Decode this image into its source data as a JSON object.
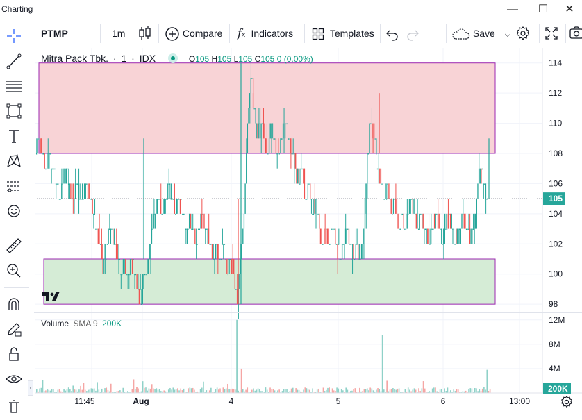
{
  "window": {
    "title": "Charting",
    "minimize": "—",
    "maximize": "☐",
    "close": "✕"
  },
  "toolbar": {
    "symbol": "PTMP",
    "interval": "1m",
    "compare": "Compare",
    "indicators": "Indicators",
    "templates": "Templates",
    "save": "Save"
  },
  "legend": {
    "name": "Mitra Pack Tbk.",
    "sep1": "·",
    "interval": "1",
    "sep2": "·",
    "exchange": "IDX",
    "open_label": "O",
    "open": "105",
    "high_label": "H",
    "high": "105",
    "low_label": "L",
    "low": "105",
    "close_label": "C",
    "close": "105",
    "change": "0 (0.00%)"
  },
  "volume_legend": {
    "label": "Volume",
    "ma": "SMA 9",
    "value": "200K"
  },
  "colors": {
    "up": "#26a69a",
    "down": "#ef5350",
    "accent": "#2962ff",
    "resistance_fill": "#f8d3d6",
    "support_fill": "#d5ecd6",
    "zone_border": "#9c27b0"
  },
  "chart_data": [
    {
      "type": "candlestick",
      "symbol": "PTMP",
      "ylim": [
        97.5,
        115
      ],
      "y_ticks": [
        "114",
        "112",
        "110",
        "108",
        "106",
        "104",
        "102",
        "100",
        "98"
      ],
      "x_ticks": [
        "11:45",
        "Aug",
        "4",
        "5",
        "6",
        "13:00"
      ],
      "last_price": "105",
      "zones": [
        {
          "name": "resistance",
          "from": 108,
          "to": 114
        },
        {
          "name": "support",
          "from": 98,
          "to": 101
        }
      ],
      "path": [
        108,
        109,
        108,
        107,
        108,
        107,
        106,
        105,
        106,
        107,
        106,
        105,
        106,
        105,
        105,
        106,
        105,
        104,
        103,
        102,
        101,
        102,
        103,
        102,
        101,
        100,
        101,
        100,
        101,
        100,
        99,
        98,
        100,
        101,
        103,
        104,
        105,
        104,
        105,
        106,
        105,
        104,
        105,
        104,
        103,
        104,
        103,
        102,
        103,
        104,
        103,
        102,
        101,
        102,
        101,
        102,
        100,
        101,
        100,
        98,
        101,
        104,
        110,
        113,
        111,
        109,
        110,
        109,
        108,
        110,
        109,
        108,
        109,
        110,
        109,
        108,
        107,
        106,
        107,
        105,
        106,
        104,
        105,
        103,
        102,
        103,
        102,
        103,
        102,
        101,
        102,
        103,
        102,
        101,
        102,
        101,
        103,
        108,
        110,
        109,
        107,
        106,
        105,
        106,
        104,
        105,
        103,
        104,
        103,
        104,
        105,
        104,
        103,
        104,
        103,
        102,
        103,
        104,
        103,
        102,
        103,
        104,
        103,
        102,
        103,
        104,
        103,
        102,
        103,
        105,
        107,
        106,
        105
      ]
    },
    {
      "type": "bar",
      "name": "Volume",
      "y_ticks": [
        "12M",
        "8M",
        "4M"
      ],
      "ylim": [
        0,
        13000000
      ],
      "last_value": "200K",
      "spikes": [
        {
          "x": 0.08,
          "value": 1200000
        },
        {
          "x": 0.22,
          "value": 1000000
        },
        {
          "x": 0.44,
          "value": 12000000
        },
        {
          "x": 0.45,
          "value": 4000000
        },
        {
          "x": 0.76,
          "value": 9500000
        },
        {
          "x": 0.77,
          "value": 2000000
        },
        {
          "x": 0.99,
          "value": 3800000
        }
      ],
      "baseline": 500000
    }
  ]
}
